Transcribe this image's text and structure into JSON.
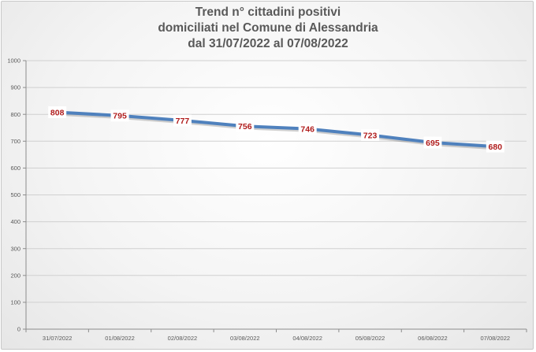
{
  "chart_data": {
    "type": "line",
    "title_lines": [
      "Trend n° cittadini positivi",
      "domiciliati nel Comune di Alessandria",
      "dal 31/07/2022 al 07/08/2022"
    ],
    "categories": [
      "31/07/2022",
      "01/08/2022",
      "02/08/2022",
      "03/08/2022",
      "04/08/2022",
      "05/08/2022",
      "06/08/2022",
      "07/08/2022"
    ],
    "series": [
      {
        "values": [
          808,
          795,
          777,
          756,
          746,
          723,
          695,
          680
        ],
        "color": "#4f81bd"
      }
    ],
    "xlabel": "",
    "ylabel": "",
    "ylim": [
      0,
      1000
    ],
    "ytick_step": 100,
    "grid": true,
    "legend": "none",
    "data_label_color": "#b01c1c"
  }
}
